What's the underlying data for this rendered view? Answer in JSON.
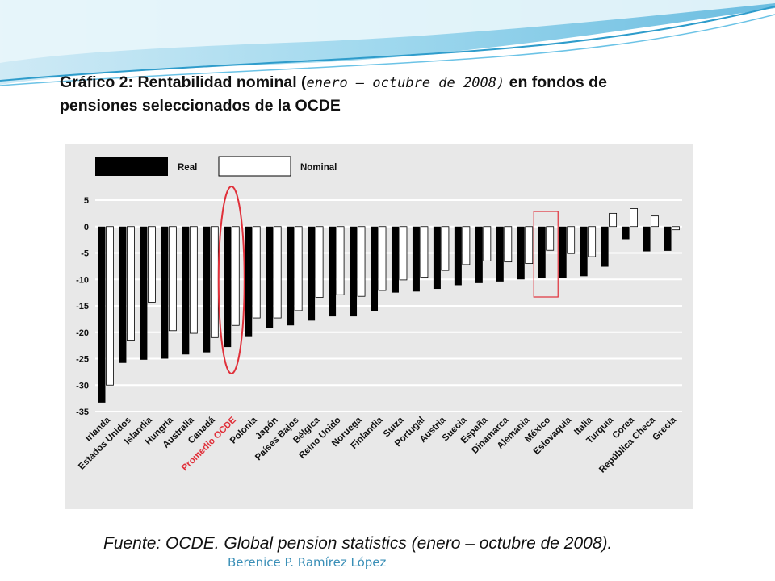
{
  "title": {
    "part1": "Gráfico 2: Rentabilidad nominal (",
    "italic": "enero – octubre de 2008)",
    "part2": " en fondos de pensiones seleccionados de la OCDE"
  },
  "source": "Fuente: OCDE. Global pension statistics (enero – octubre de 2008).",
  "author": "Berenice P. Ramírez López",
  "colors": {
    "real": "#000000",
    "nominal": "#ffffff",
    "highlight": "#e0303a",
    "chart_bg": "#e8e8e8",
    "grid": "#ffffff"
  },
  "chart_data": {
    "type": "bar",
    "legend": [
      "Real",
      "Nominal"
    ],
    "legend_position": "top-left",
    "grid": true,
    "ylim": [
      -35,
      5
    ],
    "yticks": [
      5,
      0,
      -5,
      -10,
      -15,
      -20,
      -25,
      -30,
      -35
    ],
    "categories": [
      "Irlanda",
      "Estados Unidos",
      "Islandia",
      "Hungría",
      "Australia",
      "Canadá",
      "Promedio OCDE",
      "Polonia",
      "Japón",
      "Países Bajos",
      "Bélgica",
      "Reino Unido",
      "Noruega",
      "Finlandia",
      "Suiza",
      "Portugal",
      "Austria",
      "Suecia",
      "España",
      "Dinamarca",
      "Alemania",
      "México",
      "Eslovaquia",
      "Italia",
      "Turquía",
      "Corea",
      "República Checa",
      "Grecia"
    ],
    "series": [
      {
        "name": "Real",
        "values": [
          -33.3,
          -25.8,
          -25.2,
          -25.0,
          -24.2,
          -23.8,
          -22.8,
          -20.9,
          -19.2,
          -18.7,
          -17.8,
          -17.0,
          -17.0,
          -16.0,
          -12.5,
          -12.3,
          -11.8,
          -11.1,
          -10.7,
          -10.4,
          -10.0,
          -9.8,
          -9.7,
          -9.4,
          -7.6,
          -2.4,
          -4.7,
          -4.6
        ]
      },
      {
        "name": "Nominal",
        "values": [
          -30.0,
          -21.5,
          -14.3,
          -19.7,
          -20.2,
          -21.0,
          -18.7,
          -17.3,
          -17.3,
          -15.9,
          -13.4,
          -12.9,
          -13.2,
          -12.1,
          -10.1,
          -9.6,
          -8.3,
          -7.2,
          -6.5,
          -6.7,
          -7.0,
          -4.5,
          -5.1,
          -5.7,
          2.5,
          3.4,
          2.0,
          -0.6
        ]
      }
    ],
    "highlight_circle": "Promedio OCDE",
    "highlight_box": "México"
  }
}
